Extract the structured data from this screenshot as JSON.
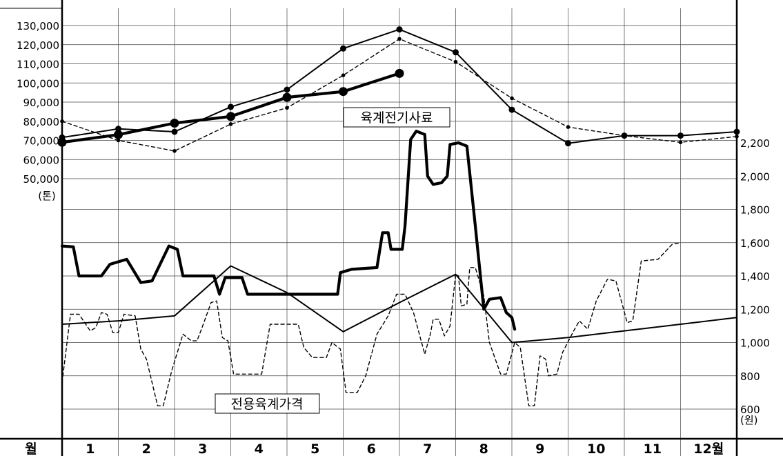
{
  "chart_data": {
    "type": "line",
    "x_axis": {
      "header": "월",
      "categories": [
        "1",
        "2",
        "3",
        "4",
        "5",
        "6",
        "7",
        "8",
        "9",
        "10",
        "11",
        "12월"
      ]
    },
    "left_axis": {
      "unit": "(톤)",
      "range": [
        50000,
        130000
      ],
      "ticks": [
        "130,000",
        "120,000",
        "110,000",
        "100,000",
        "90,000",
        "80,000",
        "70,000",
        "60,000",
        "50,000"
      ]
    },
    "right_axis": {
      "unit": "(원)",
      "range": [
        600,
        2200
      ],
      "ticks": [
        "2,200",
        "2,000",
        "1,800",
        "1,600",
        "1,400",
        "1,200",
        "1,000",
        "800",
        "600"
      ]
    },
    "annotations": {
      "feed": "육계전기사료",
      "price": "전용육계가격"
    },
    "series": [
      {
        "axis": "left",
        "style": "thin-solid",
        "points": [
          [
            0,
            71500
          ],
          [
            1,
            76000
          ],
          [
            2,
            74500
          ],
          [
            3,
            87500
          ],
          [
            4,
            96500
          ],
          [
            5,
            118000
          ],
          [
            6,
            128000
          ],
          [
            7,
            116000
          ],
          [
            8,
            86000
          ],
          [
            9,
            68500
          ],
          [
            10,
            72500
          ],
          [
            11,
            72500
          ],
          [
            12,
            74500
          ]
        ]
      },
      {
        "axis": "left",
        "style": "thin-dashed",
        "points": [
          [
            0,
            80000
          ],
          [
            1,
            70000
          ],
          [
            2,
            64500
          ],
          [
            3,
            78500
          ],
          [
            4,
            87000
          ],
          [
            5,
            104000
          ],
          [
            6,
            123000
          ],
          [
            7,
            111000
          ],
          [
            8,
            92000
          ],
          [
            9,
            77000
          ],
          [
            10,
            72500
          ],
          [
            11,
            69000
          ],
          [
            12,
            72000
          ]
        ]
      },
      {
        "axis": "left",
        "style": "bold-solid",
        "points": [
          [
            0,
            69000
          ],
          [
            1,
            73000
          ],
          [
            2,
            79000
          ],
          [
            3,
            82500
          ],
          [
            4,
            92500
          ],
          [
            5,
            95500
          ],
          [
            6,
            105000
          ]
        ]
      },
      {
        "axis": "right",
        "style": "thin-solid",
        "points": [
          [
            0,
            1110
          ],
          [
            1,
            1130
          ],
          [
            2,
            1160
          ],
          [
            3,
            1460
          ],
          [
            4,
            1300
          ],
          [
            5,
            1065
          ],
          [
            6,
            1240
          ],
          [
            7,
            1410
          ],
          [
            8,
            1000
          ],
          [
            9,
            1030
          ],
          [
            10,
            1070
          ],
          [
            11,
            1110
          ],
          [
            12,
            1150
          ]
        ]
      },
      {
        "axis": "right",
        "style": "bold-solid",
        "points": [
          [
            0,
            1580
          ],
          [
            0.2,
            1575
          ],
          [
            0.3,
            1400
          ],
          [
            0.7,
            1400
          ],
          [
            0.85,
            1470
          ],
          [
            1.15,
            1500
          ],
          [
            1.4,
            1360
          ],
          [
            1.6,
            1370
          ],
          [
            1.9,
            1580
          ],
          [
            2.05,
            1560
          ],
          [
            2.15,
            1400
          ],
          [
            2.7,
            1400
          ],
          [
            2.8,
            1290
          ],
          [
            2.9,
            1390
          ],
          [
            3.2,
            1390
          ],
          [
            3.3,
            1290
          ],
          [
            4.9,
            1290
          ],
          [
            4.95,
            1420
          ],
          [
            5.15,
            1440
          ],
          [
            5.6,
            1450
          ],
          [
            5.7,
            1660
          ],
          [
            5.8,
            1660
          ],
          [
            5.85,
            1560
          ],
          [
            6.05,
            1560
          ],
          [
            6.1,
            1700
          ],
          [
            6.2,
            2220
          ],
          [
            6.3,
            2270
          ],
          [
            6.45,
            2250
          ],
          [
            6.5,
            2000
          ],
          [
            6.6,
            1950
          ],
          [
            6.75,
            1960
          ],
          [
            6.85,
            2000
          ],
          [
            6.9,
            2190
          ],
          [
            7.05,
            2200
          ],
          [
            7.2,
            2180
          ],
          [
            7.35,
            1700
          ],
          [
            7.5,
            1200
          ],
          [
            7.6,
            1260
          ],
          [
            7.8,
            1270
          ],
          [
            7.9,
            1180
          ],
          [
            8.0,
            1150
          ],
          [
            8.05,
            1080
          ]
        ]
      },
      {
        "axis": "right",
        "style": "thin-dashed",
        "points": [
          [
            0,
            760
          ],
          [
            0.15,
            1170
          ],
          [
            0.3,
            1170
          ],
          [
            0.5,
            1070
          ],
          [
            0.6,
            1090
          ],
          [
            0.7,
            1180
          ],
          [
            0.8,
            1170
          ],
          [
            0.9,
            1060
          ],
          [
            1.0,
            1060
          ],
          [
            1.1,
            1170
          ],
          [
            1.3,
            1160
          ],
          [
            1.4,
            960
          ],
          [
            1.5,
            900
          ],
          [
            1.7,
            620
          ],
          [
            1.8,
            620
          ],
          [
            1.95,
            830
          ],
          [
            2.15,
            1050
          ],
          [
            2.3,
            1010
          ],
          [
            2.4,
            1010
          ],
          [
            2.5,
            1100
          ],
          [
            2.65,
            1240
          ],
          [
            2.75,
            1250
          ],
          [
            2.85,
            1030
          ],
          [
            2.95,
            1010
          ],
          [
            3.05,
            810
          ],
          [
            3.55,
            810
          ],
          [
            3.7,
            1110
          ],
          [
            4.2,
            1110
          ],
          [
            4.3,
            970
          ],
          [
            4.45,
            910
          ],
          [
            4.7,
            910
          ],
          [
            4.8,
            1000
          ],
          [
            4.95,
            960
          ],
          [
            5.05,
            700
          ],
          [
            5.25,
            700
          ],
          [
            5.4,
            800
          ],
          [
            5.6,
            1050
          ],
          [
            5.8,
            1160
          ],
          [
            5.95,
            1290
          ],
          [
            6.1,
            1290
          ],
          [
            6.25,
            1180
          ],
          [
            6.45,
            930
          ],
          [
            6.55,
            1050
          ],
          [
            6.6,
            1140
          ],
          [
            6.7,
            1140
          ],
          [
            6.8,
            1040
          ],
          [
            6.9,
            1100
          ],
          [
            7.0,
            1410
          ],
          [
            7.05,
            1400
          ],
          [
            7.1,
            1220
          ],
          [
            7.2,
            1230
          ],
          [
            7.25,
            1450
          ],
          [
            7.35,
            1450
          ],
          [
            7.5,
            1280
          ],
          [
            7.6,
            1000
          ],
          [
            7.8,
            810
          ],
          [
            7.9,
            810
          ],
          [
            8.05,
            1000
          ],
          [
            8.15,
            970
          ],
          [
            8.3,
            620
          ],
          [
            8.4,
            620
          ],
          [
            8.5,
            920
          ],
          [
            8.6,
            900
          ],
          [
            8.65,
            800
          ],
          [
            8.8,
            810
          ],
          [
            8.9,
            940
          ],
          [
            9.1,
            1070
          ],
          [
            9.2,
            1130
          ],
          [
            9.35,
            1080
          ],
          [
            9.5,
            1250
          ],
          [
            9.7,
            1380
          ],
          [
            9.85,
            1370
          ],
          [
            10.05,
            1120
          ],
          [
            10.15,
            1130
          ],
          [
            10.3,
            1490
          ],
          [
            10.6,
            1500
          ],
          [
            10.85,
            1590
          ],
          [
            11.0,
            1600
          ]
        ]
      }
    ]
  }
}
